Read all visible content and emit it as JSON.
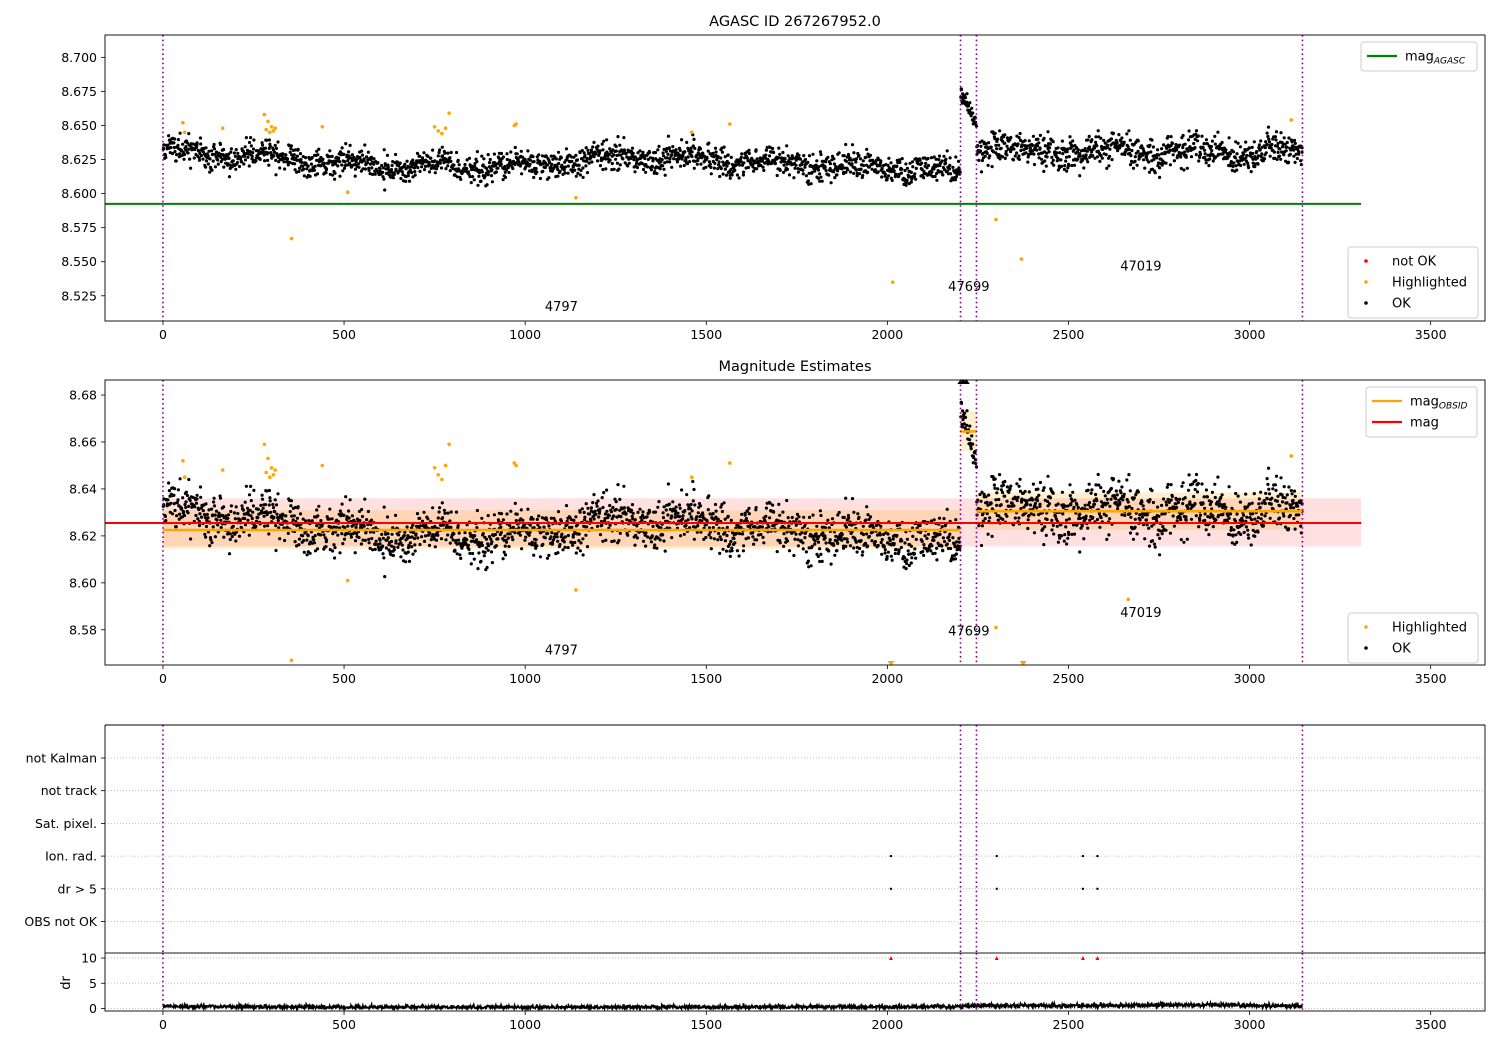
{
  "chart_data": [
    {
      "type": "scatter",
      "title": "AGASC ID 267267952.0",
      "xlim": [
        -160,
        3650
      ],
      "ylim": [
        8.5065,
        8.7164
      ],
      "xticks": [
        0,
        500,
        1000,
        1500,
        2000,
        2500,
        3000,
        3500
      ],
      "yticks": [
        8.525,
        8.55,
        8.575,
        8.6,
        8.625,
        8.65,
        8.675,
        8.7
      ],
      "ytick_labels": [
        "8.525",
        "8.550",
        "8.575",
        "8.600",
        "8.625",
        "8.650",
        "8.675",
        "8.700"
      ],
      "grid": false,
      "vlines": [
        0,
        2202,
        2246,
        3146
      ],
      "hlines": [
        {
          "name": "mag_AGASC",
          "y": 8.5925,
          "x0": -160,
          "x1": 3308,
          "color": "#008000"
        }
      ],
      "annotations": [
        {
          "text": "4797",
          "x": 1100,
          "y": 8.514
        },
        {
          "text": "47699",
          "x": 2225,
          "y": 8.5285
        },
        {
          "text": "47019",
          "x": 2700,
          "y": 8.5435
        }
      ],
      "series": [
        {
          "name": "OK",
          "color": "#000000",
          "segments": [
            {
              "x0": 0,
              "x1": 2202,
              "base": [
                [
                  0,
                  8.631
                ],
                [
                  300,
                  8.627
                ],
                [
                  600,
                  8.62
                ],
                [
                  1000,
                  8.62
                ],
                [
                  1300,
                  8.628
                ],
                [
                  1600,
                  8.624
                ],
                [
                  1900,
                  8.62
                ],
                [
                  2202,
                  8.616
                ]
              ],
              "noise": 0.0065,
              "n": 1800
            },
            {
              "x0": 2202,
              "x1": 2246,
              "base": [
                [
                  2202,
                  8.675
                ],
                [
                  2220,
                  8.667
                ],
                [
                  2246,
                  8.65
                ]
              ],
              "noise": 0.004,
              "n": 40
            },
            {
              "x0": 2246,
              "x1": 3146,
              "base": [
                [
                  2246,
                  8.638
                ],
                [
                  2400,
                  8.63
                ],
                [
                  2700,
                  8.631
                ],
                [
                  3146,
                  8.63
                ]
              ],
              "noise": 0.0075,
              "n": 760
            }
          ]
        },
        {
          "name": "Highlighted",
          "color": "#ffa500",
          "points": [
            [
              55,
              8.652
            ],
            [
              60,
              8.645
            ],
            [
              165,
              8.648
            ],
            [
              280,
              8.658
            ],
            [
              285,
              8.647
            ],
            [
              290,
              8.653
            ],
            [
              295,
              8.645
            ],
            [
              300,
              8.649
            ],
            [
              305,
              8.646
            ],
            [
              310,
              8.648
            ],
            [
              355,
              8.567
            ],
            [
              440,
              8.649
            ],
            [
              510,
              8.601
            ],
            [
              750,
              8.649
            ],
            [
              760,
              8.646
            ],
            [
              770,
              8.644
            ],
            [
              780,
              8.648
            ],
            [
              790,
              8.659
            ],
            [
              970,
              8.65
            ],
            [
              975,
              8.651
            ],
            [
              1140,
              8.597
            ],
            [
              1460,
              8.645
            ],
            [
              1565,
              8.651
            ],
            [
              2015,
              8.535
            ],
            [
              2300,
              8.581
            ],
            [
              2370,
              8.552
            ],
            [
              3115,
              8.654
            ]
          ]
        },
        {
          "name": "not OK",
          "color": "#ff0000",
          "points": []
        }
      ],
      "legend": [
        {
          "position": "top-right",
          "entries": [
            {
              "label": "mag",
              "sub": "AGASC",
              "style": "line",
              "color": "#008000"
            }
          ]
        },
        {
          "position": "lower-right",
          "entries": [
            {
              "label": "not OK",
              "style": "dot",
              "color": "#ff0000"
            },
            {
              "label": "Highlighted",
              "style": "dot",
              "color": "#ffa500"
            },
            {
              "label": "OK",
              "style": "dot",
              "color": "#000000"
            }
          ]
        }
      ]
    },
    {
      "type": "scatter",
      "title": "Magnitude Estimates",
      "xlim": [
        -160,
        3650
      ],
      "ylim": [
        8.565,
        8.6864
      ],
      "xticks": [
        0,
        500,
        1000,
        1500,
        2000,
        2500,
        3000,
        3500
      ],
      "yticks": [
        8.58,
        8.6,
        8.62,
        8.64,
        8.66,
        8.68
      ],
      "ytick_labels": [
        "8.58",
        "8.60",
        "8.62",
        "8.64",
        "8.66",
        "8.68"
      ],
      "grid": false,
      "vlines": [
        0,
        2202,
        2246,
        3146
      ],
      "bands": [
        {
          "x0": 0,
          "x1": 3308,
          "y0": 8.6155,
          "y1": 8.636,
          "color": "#ff0000",
          "opacity": 0.12
        },
        {
          "x0": 0,
          "x1": 2202,
          "y0": 8.6145,
          "y1": 8.631,
          "color": "#ffa500",
          "opacity": 0.18
        },
        {
          "x0": 2246,
          "x1": 3146,
          "y0": 8.6225,
          "y1": 8.6385,
          "color": "#ffa500",
          "opacity": 0.18
        },
        {
          "x0": 2202,
          "x1": 2246,
          "y0": 8.656,
          "y1": 8.673,
          "color": "#ffa500",
          "opacity": 0.18
        }
      ],
      "hlines": [
        {
          "name": "mag_OBSID 4797",
          "y": 8.6225,
          "x0": 0,
          "x1": 2202,
          "color": "#ffa500"
        },
        {
          "name": "mag_OBSID 47699",
          "y": 8.6645,
          "x0": 2202,
          "x1": 2246,
          "color": "#ffa500"
        },
        {
          "name": "mag_OBSID 47019",
          "y": 8.6305,
          "x0": 2246,
          "x1": 3146,
          "color": "#ffa500"
        },
        {
          "name": "mag",
          "y": 8.6255,
          "x0": -160,
          "x1": 3308,
          "color": "#ff0000"
        }
      ],
      "annotations": [
        {
          "text": "4797",
          "x": 1100,
          "y": 8.5695
        },
        {
          "text": "47699",
          "x": 2225,
          "y": 8.5775
        },
        {
          "text": "47019",
          "x": 2700,
          "y": 8.5855
        }
      ],
      "offscale_markers": [
        {
          "x": 2010,
          "y": 8.565,
          "dir": "down",
          "color": "#ffa500"
        },
        {
          "x": 2375,
          "y": 8.565,
          "dir": "down",
          "color": "#ffa500"
        },
        {
          "x": 2203,
          "y": 8.6864,
          "dir": "up",
          "color": "#000000"
        },
        {
          "x": 2210,
          "y": 8.6864,
          "dir": "up",
          "color": "#000000"
        },
        {
          "x": 2218,
          "y": 8.6864,
          "dir": "up",
          "color": "#000000"
        }
      ],
      "series": [
        {
          "name": "OK",
          "color": "#000000",
          "segments": [
            {
              "x0": 0,
              "x1": 2202,
              "base": [
                [
                  0,
                  8.631
                ],
                [
                  300,
                  8.627
                ],
                [
                  600,
                  8.62
                ],
                [
                  1000,
                  8.62
                ],
                [
                  1300,
                  8.628
                ],
                [
                  1600,
                  8.624
                ],
                [
                  1900,
                  8.62
                ],
                [
                  2202,
                  8.616
                ]
              ],
              "noise": 0.0065,
              "n": 1800
            },
            {
              "x0": 2202,
              "x1": 2246,
              "base": [
                [
                  2202,
                  8.675
                ],
                [
                  2220,
                  8.667
                ],
                [
                  2246,
                  8.65
                ]
              ],
              "noise": 0.004,
              "n": 40
            },
            {
              "x0": 2246,
              "x1": 3146,
              "base": [
                [
                  2246,
                  8.638
                ],
                [
                  2400,
                  8.63
                ],
                [
                  2700,
                  8.631
                ],
                [
                  3146,
                  8.63
                ]
              ],
              "noise": 0.0075,
              "n": 760
            }
          ]
        },
        {
          "name": "Highlighted",
          "color": "#ffa500",
          "points": [
            [
              55,
              8.652
            ],
            [
              60,
              8.645
            ],
            [
              165,
              8.648
            ],
            [
              280,
              8.659
            ],
            [
              285,
              8.647
            ],
            [
              290,
              8.653
            ],
            [
              295,
              8.645
            ],
            [
              300,
              8.649
            ],
            [
              305,
              8.646
            ],
            [
              310,
              8.648
            ],
            [
              355,
              8.567
            ],
            [
              440,
              8.65
            ],
            [
              510,
              8.601
            ],
            [
              750,
              8.649
            ],
            [
              760,
              8.646
            ],
            [
              770,
              8.644
            ],
            [
              780,
              8.65
            ],
            [
              790,
              8.659
            ],
            [
              970,
              8.651
            ],
            [
              975,
              8.65
            ],
            [
              1140,
              8.597
            ],
            [
              1460,
              8.645
            ],
            [
              1565,
              8.651
            ],
            [
              2300,
              8.581
            ],
            [
              2665,
              8.593
            ],
            [
              3115,
              8.654
            ]
          ]
        }
      ],
      "legend": [
        {
          "position": "top-right",
          "entries": [
            {
              "label": "mag",
              "sub": "OBSID",
              "style": "line",
              "color": "#ffa500"
            },
            {
              "label": "mag",
              "style": "line",
              "color": "#ff0000"
            }
          ]
        },
        {
          "position": "lower-right",
          "entries": [
            {
              "label": "Highlighted",
              "style": "dot",
              "color": "#ffa500"
            },
            {
              "label": "OK",
              "style": "dot",
              "color": "#000000"
            }
          ]
        }
      ]
    },
    {
      "type": "scatter",
      "title": "",
      "xlim": [
        -160,
        3650
      ],
      "categories": [
        "not Kalman",
        "not track",
        "Sat. pixel.",
        "Ion. rad.",
        "dr > 5",
        "OBS not OK"
      ],
      "vlines": [
        0,
        2202,
        2246,
        3146
      ],
      "flags": [
        {
          "category": "Ion. rad.",
          "x": [
            2010,
            2302,
            2540,
            2580
          ]
        },
        {
          "category": "dr > 5",
          "x": [
            2010,
            2302,
            2540,
            2580
          ]
        }
      ]
    },
    {
      "type": "line",
      "title": "",
      "ylabel": "dr",
      "xlim": [
        -160,
        3650
      ],
      "ylim": [
        -0.5,
        11
      ],
      "xticks": [
        0,
        500,
        1000,
        1500,
        2000,
        2500,
        3000,
        3500
      ],
      "yticks": [
        0,
        5,
        10
      ],
      "grid": true,
      "vlines": [
        0,
        2202,
        2246,
        3146
      ],
      "clipped_markers": [
        {
          "x": 2010,
          "y": 10
        },
        {
          "x": 2302,
          "y": 10
        },
        {
          "x": 2540,
          "y": 10
        },
        {
          "x": 2580,
          "y": 10
        }
      ],
      "series": [
        {
          "name": "dr",
          "color": "#000000",
          "base": [
            [
              0,
              0.4
            ],
            [
              300,
              0.3
            ],
            [
              1000,
              0.25
            ],
            [
              2000,
              0.3
            ],
            [
              2202,
              0.35
            ],
            [
              2246,
              0.6
            ],
            [
              2600,
              0.55
            ],
            [
              2800,
              0.7
            ],
            [
              3146,
              0.5
            ]
          ],
          "noise": 0.2,
          "n": 2600
        }
      ]
    }
  ]
}
